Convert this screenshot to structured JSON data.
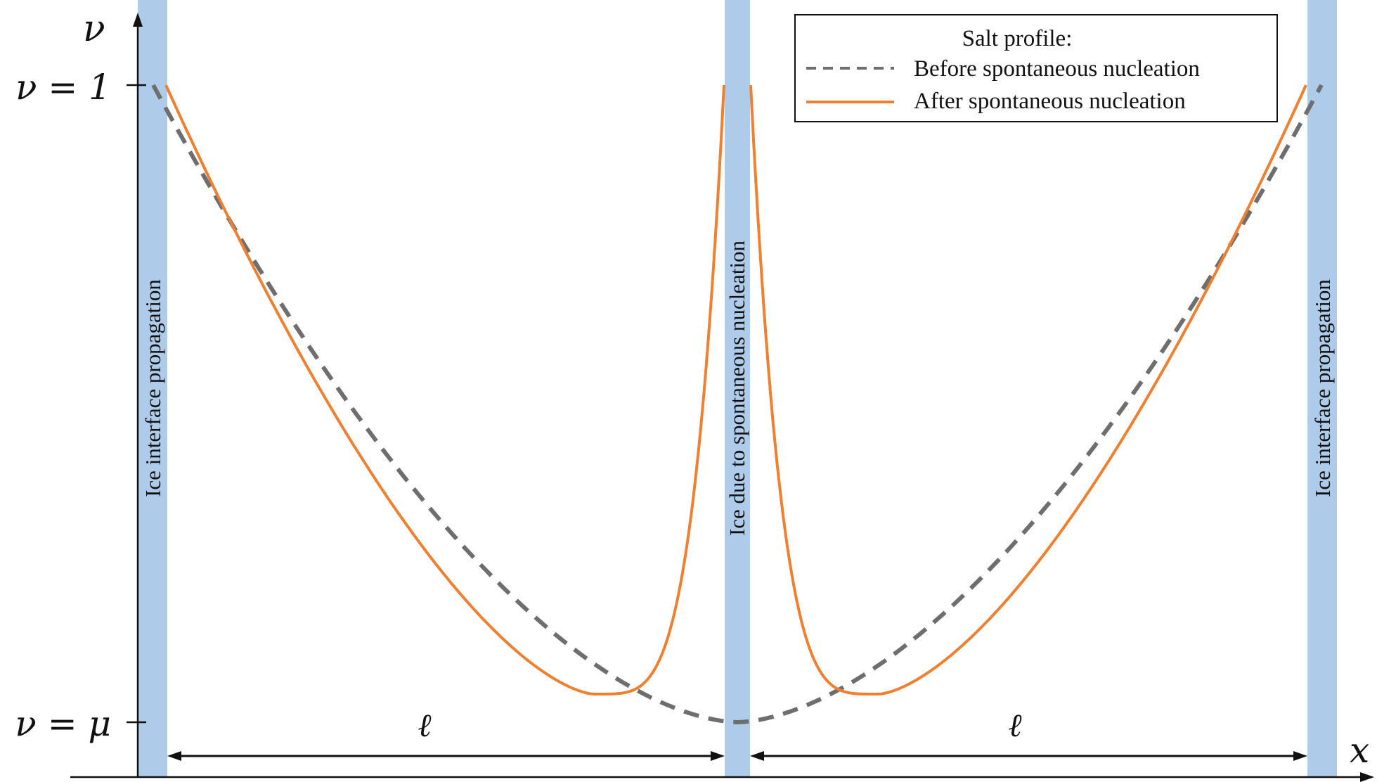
{
  "axes": {
    "y_axis_label": "ν",
    "x_axis_label": "x",
    "y_tick_top": "ν = 1",
    "y_tick_bottom": "ν = μ"
  },
  "bands": {
    "left_label": "Ice  interface propagation",
    "middle_label": "Ice  due to spontaneous nucleation",
    "right_label": "Ice  interface propagation",
    "color": "#aecce9"
  },
  "spacing": {
    "left_label": "ℓ",
    "right_label": "ℓ"
  },
  "legend": {
    "title": "Salt profile:",
    "items": [
      {
        "label": "Before spontaneous nucleation",
        "color": "#6e6e6e",
        "style": "dashed"
      },
      {
        "label": "After spontaneous nucleation",
        "color": "#f08030",
        "style": "solid"
      }
    ]
  },
  "curves": {
    "before_color": "#6e6e6e",
    "after_color": "#f08030"
  }
}
